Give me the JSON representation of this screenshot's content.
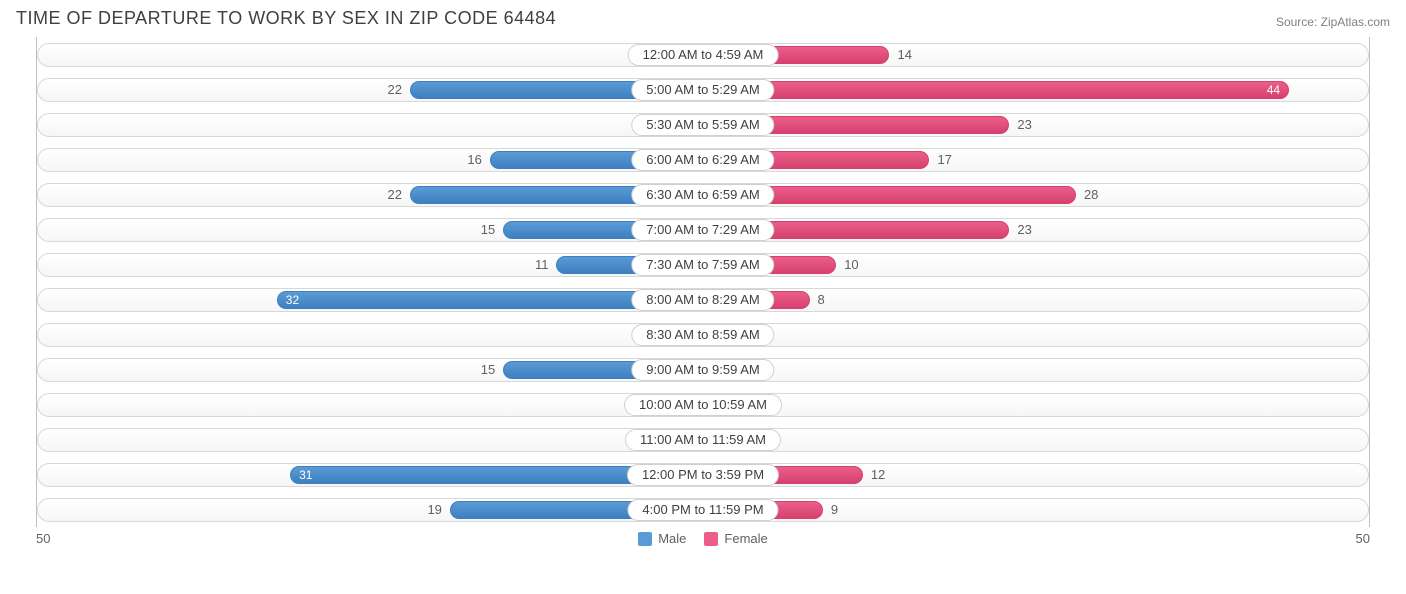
{
  "title": "TIME OF DEPARTURE TO WORK BY SEX IN ZIP CODE 64484",
  "source_label": "Source: ",
  "source_name": "ZipAtlas.com",
  "chart": {
    "type": "diverging-bar",
    "axis_max": 50,
    "axis_left_label": "50",
    "axis_right_label": "50",
    "min_bar_value_for_full_width": 3,
    "male_color": "#5b9bd5",
    "male_border": "#3d7fc1",
    "female_color": "#ec5e8a",
    "female_border": "#d6416f",
    "track_border": "#d8d8d8",
    "track_bg_top": "#ffffff",
    "track_bg_bottom": "#f6f6f6",
    "text_color": "#404040",
    "value_text_color": "#606060",
    "legend": [
      {
        "label": "Male",
        "color": "#5b9bd5"
      },
      {
        "label": "Female",
        "color": "#ec5e8a"
      }
    ],
    "rows": [
      {
        "category": "12:00 AM to 4:59 AM",
        "male": 0,
        "female": 14
      },
      {
        "category": "5:00 AM to 5:29 AM",
        "male": 22,
        "female": 44
      },
      {
        "category": "5:30 AM to 5:59 AM",
        "male": 2,
        "female": 23
      },
      {
        "category": "6:00 AM to 6:29 AM",
        "male": 16,
        "female": 17
      },
      {
        "category": "6:30 AM to 6:59 AM",
        "male": 22,
        "female": 28
      },
      {
        "category": "7:00 AM to 7:29 AM",
        "male": 15,
        "female": 23
      },
      {
        "category": "7:30 AM to 7:59 AM",
        "male": 11,
        "female": 10
      },
      {
        "category": "8:00 AM to 8:29 AM",
        "male": 32,
        "female": 8
      },
      {
        "category": "8:30 AM to 8:59 AM",
        "male": 0,
        "female": 2
      },
      {
        "category": "9:00 AM to 9:59 AM",
        "male": 15,
        "female": 0
      },
      {
        "category": "10:00 AM to 10:59 AM",
        "male": 0,
        "female": 0
      },
      {
        "category": "11:00 AM to 11:59 AM",
        "male": 0,
        "female": 0
      },
      {
        "category": "12:00 PM to 3:59 PM",
        "male": 31,
        "female": 12
      },
      {
        "category": "4:00 PM to 11:59 PM",
        "male": 19,
        "female": 9
      }
    ]
  }
}
